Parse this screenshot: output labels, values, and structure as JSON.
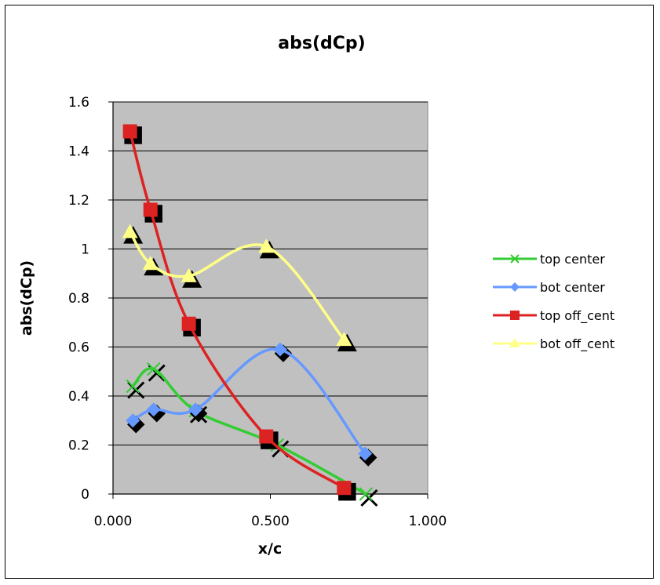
{
  "chart_data": {
    "type": "scatter",
    "title": "abs(dCp)",
    "xlabel": "x/c",
    "ylabel": "abs(dCp)",
    "xlim": [
      0,
      1
    ],
    "ylim": [
      0,
      1.6
    ],
    "x_ticks": [
      "0.000",
      "0.500",
      "1.000"
    ],
    "x_tick_values": [
      0,
      0.5,
      1
    ],
    "y_ticks": [
      "0",
      "0.2",
      "0.4",
      "0.6",
      "0.8",
      "1",
      "1.2",
      "1.4",
      "1.6"
    ],
    "y_tick_values": [
      0,
      0.2,
      0.4,
      0.6,
      0.8,
      1.0,
      1.2,
      1.4,
      1.6
    ],
    "grid": "horizontal",
    "plot_background": "#c0c0c0",
    "legend_position": "right",
    "series": [
      {
        "name": "top center",
        "marker": "x",
        "color": "#33cc33",
        "x": [
          0.063,
          0.129,
          0.262,
          0.522,
          0.804
        ],
        "y": [
          0.44,
          0.51,
          0.34,
          0.2,
          0.0
        ]
      },
      {
        "name": "bot center",
        "marker": "diamond",
        "color": "#6699ff",
        "x": [
          0.063,
          0.129,
          0.262,
          0.531,
          0.801
        ],
        "y": [
          0.3,
          0.345,
          0.345,
          0.59,
          0.165
        ]
      },
      {
        "name": "top off_cent",
        "marker": "square",
        "color": "#dd2222",
        "x": [
          0.054,
          0.119,
          0.241,
          0.487,
          0.734
        ],
        "y": [
          1.48,
          1.16,
          0.695,
          0.235,
          0.025
        ]
      },
      {
        "name": "bot off_cent",
        "marker": "triangle",
        "color": "#ffff88",
        "x": [
          0.054,
          0.119,
          0.241,
          0.487,
          0.734
        ],
        "y": [
          1.07,
          0.94,
          0.89,
          1.01,
          0.63
        ]
      }
    ]
  }
}
